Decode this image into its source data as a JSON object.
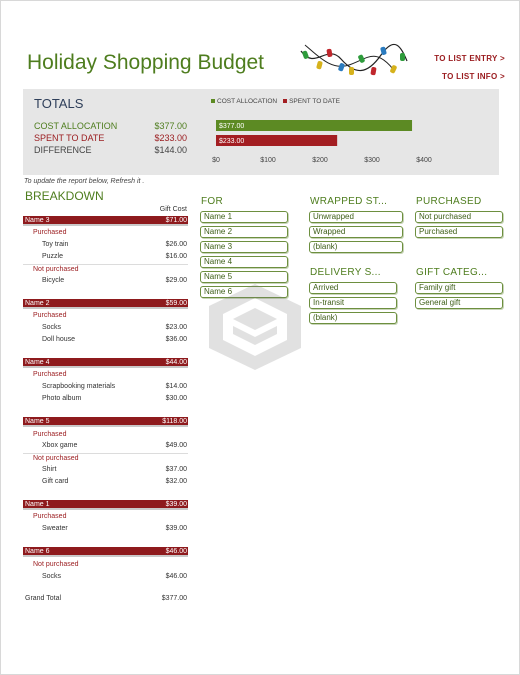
{
  "header": {
    "title": "Holiday Shopping Budget",
    "nav_list_entry": "TO LIST ENTRY >",
    "nav_list_info": "TO LIST INFO >"
  },
  "totals": {
    "title": "TOTALS",
    "rows": [
      {
        "label": "COST ALLOCATION",
        "value": "$377.00"
      },
      {
        "label": "SPENT TO DATE",
        "value": "$233.00"
      },
      {
        "label": "DIFFERENCE",
        "value": "$144.00"
      }
    ]
  },
  "chart_data": {
    "type": "bar",
    "orientation": "horizontal",
    "series": [
      {
        "name": "COST ALLOCATION",
        "value": 377,
        "label": "$377.00",
        "color": "#5c8a23"
      },
      {
        "name": "SPENT TO DATE",
        "value": 233,
        "label": "$233.00",
        "color": "#a31e22"
      }
    ],
    "xlim": [
      0,
      400
    ],
    "xticks": [
      "$0",
      "$100",
      "$200",
      "$300",
      "$400"
    ],
    "legend": "top"
  },
  "notes": {
    "update": "To update the report below, Refresh it ."
  },
  "breakdown": {
    "title": "BREAKDOWN",
    "col_header": "Gift Cost",
    "groups": [
      {
        "name": "Name 3",
        "total": "$71.00",
        "statuses": [
          {
            "status": "Purchased",
            "items": [
              {
                "item": "Toy train",
                "cost": "$26.00"
              },
              {
                "item": "Puzzle",
                "cost": "$16.00"
              }
            ]
          },
          {
            "status": "Not purchased",
            "items": [
              {
                "item": "Bicycle",
                "cost": "$29.00"
              }
            ]
          }
        ]
      },
      {
        "name": "Name 2",
        "total": "$59.00",
        "statuses": [
          {
            "status": "Purchased",
            "items": [
              {
                "item": "Socks",
                "cost": "$23.00"
              },
              {
                "item": "Doll house",
                "cost": "$36.00"
              }
            ]
          }
        ]
      },
      {
        "name": "Name 4",
        "total": "$44.00",
        "statuses": [
          {
            "status": "Purchased",
            "items": [
              {
                "item": "Scrapbooking materials",
                "cost": "$14.00"
              },
              {
                "item": "Photo album",
                "cost": "$30.00"
              }
            ]
          }
        ]
      },
      {
        "name": "Name 5",
        "total": "$118.00",
        "statuses": [
          {
            "status": "Purchased",
            "items": [
              {
                "item": "Xbox game",
                "cost": "$49.00"
              }
            ]
          },
          {
            "status": "Not purchased",
            "items": [
              {
                "item": "Shirt",
                "cost": "$37.00"
              },
              {
                "item": "Gift card",
                "cost": "$32.00"
              }
            ]
          }
        ]
      },
      {
        "name": "Name 1",
        "total": "$39.00",
        "statuses": [
          {
            "status": "Purchased",
            "items": [
              {
                "item": "Sweater",
                "cost": "$39.00"
              }
            ]
          }
        ]
      },
      {
        "name": "Name 6",
        "total": "$46.00",
        "statuses": [
          {
            "status": "Not purchased",
            "items": [
              {
                "item": "Socks",
                "cost": "$46.00"
              }
            ]
          }
        ]
      }
    ],
    "grand_total_label": "Grand Total",
    "grand_total_value": "$377.00"
  },
  "slicers": {
    "for": {
      "title": "FOR",
      "items": [
        "Name 1",
        "Name 2",
        "Name 3",
        "Name 4",
        "Name 5",
        "Name 6"
      ]
    },
    "wrapped": {
      "title": "WRAPPED ST...",
      "items": [
        "Unwrapped",
        "Wrapped",
        "(blank)"
      ]
    },
    "purchased": {
      "title": "PURCHASED",
      "items": [
        "Not purchased",
        "Purchased"
      ]
    },
    "delivery": {
      "title": "DELIVERY S...",
      "items": [
        "Arrived",
        "In-transit",
        "(blank)"
      ]
    },
    "gift_category": {
      "title": "GIFT CATEG...",
      "items": [
        "Family gift",
        "General gift"
      ]
    }
  },
  "colors": {
    "green": "#4e7d1e",
    "red": "#9a1b1e",
    "totals_bg": "#e6e6e6"
  },
  "icons": [
    "string-lights-icon",
    "watermark-logo-icon"
  ]
}
